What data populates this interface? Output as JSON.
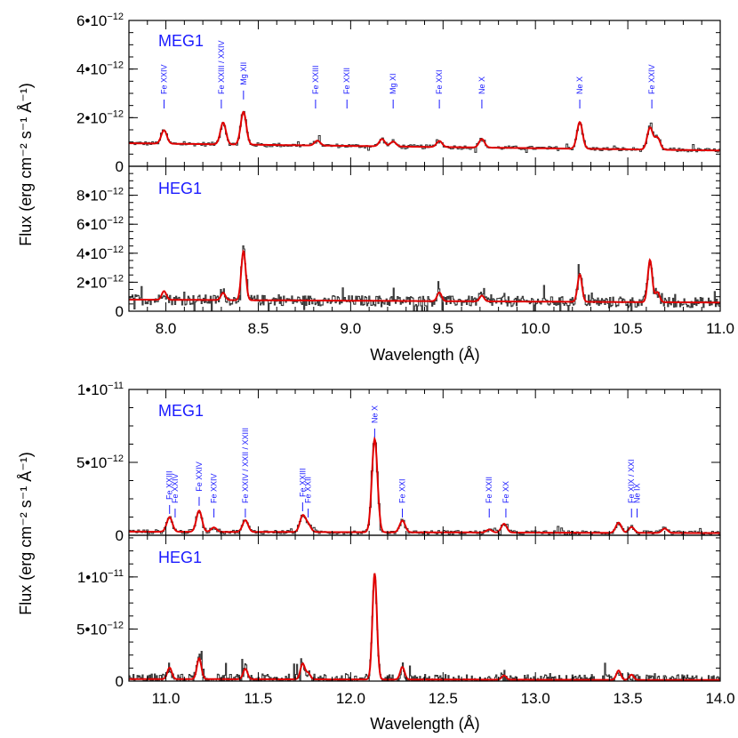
{
  "colors": {
    "model": "#e00000",
    "data": "#3a3a3a",
    "label": "#1a1aff",
    "axis": "#000000"
  },
  "chart_data": [
    {
      "type": "line",
      "panel": "top-MEG1",
      "label": "MEG1",
      "xlim": [
        7.8,
        11.0
      ],
      "ylim": [
        0,
        6e-12
      ],
      "yticks": [
        {
          "v": 0,
          "l": "0"
        },
        {
          "v": 2e-12,
          "l": "2•10⁻¹²"
        },
        {
          "v": 4e-12,
          "l": "4•10⁻¹²"
        },
        {
          "v": 6e-12,
          "l": "6•10⁻¹²"
        }
      ],
      "xticks": [],
      "ylabel": "Flux (erg cm⁻² s⁻¹ Å⁻¹)",
      "baseline": [
        [
          7.8,
          9.5e-13
        ],
        [
          11.0,
          6.5e-13
        ]
      ],
      "peaks": [
        [
          7.99,
          5.5e-13
        ],
        [
          8.31,
          9e-13
        ],
        [
          8.42,
          1.35e-12
        ],
        [
          8.82,
          2e-13
        ],
        [
          9.17,
          3e-13
        ],
        [
          9.23,
          2e-13
        ],
        [
          9.48,
          2.5e-13
        ],
        [
          9.71,
          3.5e-13
        ],
        [
          10.24,
          1.1e-12
        ],
        [
          10.62,
          9e-13
        ],
        [
          10.66,
          5e-13
        ]
      ],
      "line_ids": [
        {
          "label": "Fe XXIV",
          "x": 7.99
        },
        {
          "label": "Fe XXIII / XXIV",
          "x": 8.3
        },
        {
          "label": "Mg XII",
          "x": 8.42
        },
        {
          "label": "Fe XXIII",
          "x": 8.81
        },
        {
          "label": "Fe XXII",
          "x": 8.98
        },
        {
          "label": "Mg XI",
          "x": 9.23
        },
        {
          "label": "Fe XXI",
          "x": 9.48
        },
        {
          "label": "Ne X",
          "x": 9.71
        },
        {
          "label": "Ne X",
          "x": 10.24
        },
        {
          "label": "Fe XXIV",
          "x": 10.63
        }
      ]
    },
    {
      "type": "line",
      "panel": "top-HEG1",
      "label": "HEG1",
      "xlim": [
        7.8,
        11.0
      ],
      "ylim": [
        0,
        1e-11
      ],
      "yticks": [
        {
          "v": 0,
          "l": "0"
        },
        {
          "v": 2e-12,
          "l": "2•10⁻¹²"
        },
        {
          "v": 4e-12,
          "l": "4•10⁻¹²"
        },
        {
          "v": 6e-12,
          "l": "6•10⁻¹²"
        },
        {
          "v": 8e-12,
          "l": "8•10⁻¹²"
        }
      ],
      "xticks": [
        8.0,
        8.5,
        9.0,
        9.5,
        10.0,
        10.5,
        11.0
      ],
      "xlabel": "Wavelength (Å)",
      "baseline": [
        [
          7.8,
          8e-13
        ],
        [
          11.0,
          6e-13
        ]
      ],
      "peaks": [
        [
          7.99,
          6e-13
        ],
        [
          8.31,
          5e-13
        ],
        [
          8.42,
          3.4e-12
        ],
        [
          9.48,
          6e-13
        ],
        [
          9.71,
          4e-13
        ],
        [
          10.24,
          1.9e-12
        ],
        [
          10.62,
          2.9e-12
        ],
        [
          10.66,
          7e-13
        ]
      ],
      "line_ids": []
    },
    {
      "type": "line",
      "panel": "bottom-MEG1",
      "label": "MEG1",
      "xlim": [
        10.8,
        14.0
      ],
      "ylim": [
        0,
        1e-11
      ],
      "yticks": [
        {
          "v": 0,
          "l": "0"
        },
        {
          "v": 5e-12,
          "l": "5•10⁻¹²"
        },
        {
          "v": 1e-11,
          "l": "1•10⁻¹¹"
        }
      ],
      "xticks": [],
      "ylabel": "Flux (erg cm⁻² s⁻¹ Å⁻¹)",
      "baseline": [
        [
          10.8,
          2.5e-13
        ],
        [
          14.0,
          1.5e-13
        ]
      ],
      "peaks": [
        [
          11.02,
          1e-12
        ],
        [
          11.18,
          1.45e-12
        ],
        [
          11.26,
          3e-13
        ],
        [
          11.43,
          8e-13
        ],
        [
          11.74,
          1.1e-12
        ],
        [
          11.77,
          5e-13
        ],
        [
          12.13,
          6.4e-12
        ],
        [
          12.28,
          8e-13
        ],
        [
          12.75,
          2e-13
        ],
        [
          12.83,
          6e-13
        ],
        [
          13.45,
          7e-13
        ],
        [
          13.52,
          4e-13
        ],
        [
          13.7,
          3e-13
        ]
      ],
      "line_ids": [
        {
          "label": "Fe XXIII",
          "x": 11.02
        },
        {
          "label": "Fe XXIV",
          "x": 11.05
        },
        {
          "label": "Fe XXIV",
          "x": 11.18
        },
        {
          "label": "Fe XXIV",
          "x": 11.26
        },
        {
          "label": "Fe XXIV / XXII / XXIII",
          "x": 11.43
        },
        {
          "label": "Fe XXIII",
          "x": 11.74
        },
        {
          "label": "Fe XXII",
          "x": 11.77
        },
        {
          "label": "Ne X",
          "x": 12.13
        },
        {
          "label": "Fe XXI",
          "x": 12.28
        },
        {
          "label": "Fe XXII",
          "x": 12.75
        },
        {
          "label": "Fe XX",
          "x": 12.84
        },
        {
          "label": "Fe XIX / XXI",
          "x": 13.52
        },
        {
          "label": "Ne IX",
          "x": 13.55
        }
      ]
    },
    {
      "type": "line",
      "panel": "bottom-HEG1",
      "label": "HEG1",
      "xlim": [
        10.8,
        14.0
      ],
      "ylim": [
        0,
        1.4e-11
      ],
      "yticks": [
        {
          "v": 0,
          "l": "0"
        },
        {
          "v": 5e-12,
          "l": "5•10⁻¹²"
        },
        {
          "v": 1e-11,
          "l": "1•10⁻¹¹"
        }
      ],
      "xticks": [
        11.0,
        11.5,
        12.0,
        12.5,
        13.0,
        13.5,
        14.0
      ],
      "xlabel": "Wavelength (Å)",
      "baseline": [
        [
          10.8,
          2e-13
        ],
        [
          14.0,
          1e-13
        ]
      ],
      "peaks": [
        [
          11.02,
          1.1e-12
        ],
        [
          11.18,
          2e-12
        ],
        [
          11.43,
          1e-12
        ],
        [
          11.74,
          1.5e-12
        ],
        [
          11.77,
          6e-13
        ],
        [
          12.13,
          1.02e-11
        ],
        [
          12.28,
          1.2e-12
        ],
        [
          12.83,
          4e-13
        ],
        [
          13.45,
          9e-13
        ],
        [
          13.52,
          5e-13
        ]
      ],
      "line_ids": []
    }
  ]
}
